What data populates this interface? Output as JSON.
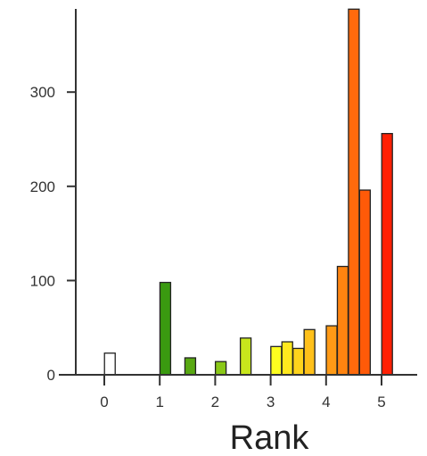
{
  "chart_data": {
    "type": "bar",
    "title": "",
    "xlabel": "Rank",
    "ylabel": "",
    "xlim": [
      -0.5,
      5.75
    ],
    "ylim": [
      0,
      390
    ],
    "grid": false,
    "x_ticks": [
      0,
      1,
      2,
      3,
      4,
      5
    ],
    "x_tick_labels": [
      "0",
      "1",
      "2",
      "3",
      "4",
      "5"
    ],
    "y_ticks": [
      0,
      100,
      200,
      300
    ],
    "y_tick_labels": [
      "0",
      "100",
      "200",
      "300"
    ],
    "bars": [
      {
        "x": 0.1,
        "value": 23,
        "color": "#ffffff"
      },
      {
        "x": 1.1,
        "value": 98,
        "color": "#3a9a10"
      },
      {
        "x": 1.55,
        "value": 18,
        "color": "#58a812"
      },
      {
        "x": 2.1,
        "value": 14,
        "color": "#8ac818"
      },
      {
        "x": 2.55,
        "value": 39,
        "color": "#c8e61c"
      },
      {
        "x": 3.1,
        "value": 30,
        "color": "#ffff20"
      },
      {
        "x": 3.3,
        "value": 35,
        "color": "#ffe81e"
      },
      {
        "x": 3.5,
        "value": 28,
        "color": "#ffd41c"
      },
      {
        "x": 3.7,
        "value": 48,
        "color": "#ffc01a"
      },
      {
        "x": 4.1,
        "value": 52,
        "color": "#ff9a16"
      },
      {
        "x": 4.3,
        "value": 115,
        "color": "#ff8410"
      },
      {
        "x": 4.5,
        "value": 388,
        "color": "#ff6a0c"
      },
      {
        "x": 4.7,
        "value": 196,
        "color": "#ff5a08"
      },
      {
        "x": 5.1,
        "value": 256,
        "color": "#ff2004"
      }
    ]
  }
}
